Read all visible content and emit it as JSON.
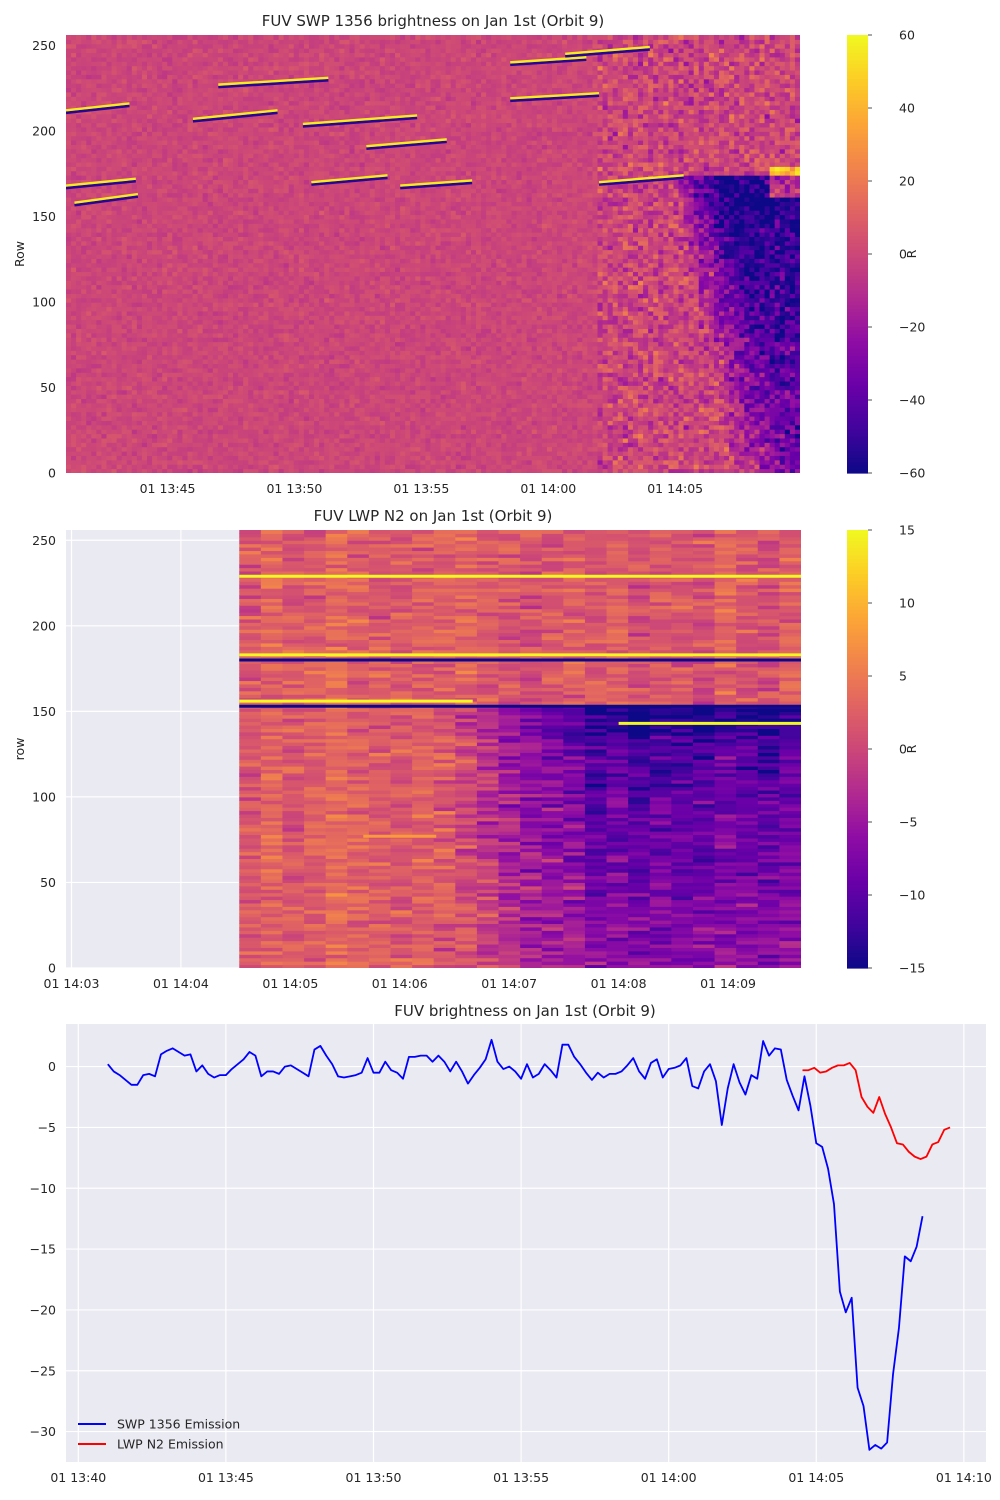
{
  "panels": [
    {
      "title": "FUV SWP 1356 brightness on Jan 1st (Orbit 9)",
      "ylabel": "Row",
      "colorbar_label": "R",
      "colorbar_ticks": [
        "60",
        "40",
        "20",
        "0",
        "−20",
        "−40",
        "−60"
      ],
      "y_ticks": [
        "0",
        "50",
        "100",
        "150",
        "200",
        "250"
      ],
      "x_ticks": [
        "01 13:45",
        "01 13:50",
        "01 13:55",
        "01 14:00",
        "01 14:05"
      ]
    },
    {
      "title": "FUV LWP N2 on Jan 1st (Orbit 9)",
      "ylabel": "row",
      "colorbar_label": "R",
      "colorbar_ticks": [
        "15",
        "10",
        "5",
        "0",
        "−5",
        "−10",
        "−15"
      ],
      "y_ticks": [
        "0",
        "50",
        "100",
        "150",
        "200",
        "250"
      ],
      "x_ticks": [
        "01 14:03",
        "01 14:04",
        "01 14:05",
        "01 14:06",
        "01 14:07",
        "01 14:08",
        "01 14:09"
      ]
    },
    {
      "title": "FUV brightness on Jan 1st (Orbit 9)",
      "y_ticks": [
        "0",
        "−5",
        "−10",
        "−15",
        "−20",
        "−25",
        "−30"
      ],
      "x_ticks": [
        "01 13:40",
        "01 13:45",
        "01 13:50",
        "01 13:55",
        "01 14:00",
        "01 14:05",
        "01 14:10"
      ],
      "legend": [
        "SWP 1356 Emission",
        "LWP N2 Emission"
      ]
    }
  ],
  "colors": {
    "swp_line": "#0000ff",
    "lwp_line": "#ff0000",
    "axes_bg": "#eaeaf2",
    "grid": "#ffffff",
    "cmap": "plasma"
  },
  "chart_data": [
    {
      "type": "heatmap",
      "title": "FUV SWP 1356 brightness on Jan 1st (Orbit 9)",
      "ylabel": "Row",
      "colorbar_label": "R",
      "colormap": "plasma",
      "color_range": [
        -60,
        60
      ],
      "x_range": [
        "13:41:00",
        "14:09:55"
      ],
      "y_range": [
        0,
        256
      ],
      "features": [
        {
          "kind": "background",
          "value": 0
        },
        {
          "kind": "negative-region",
          "time_start": "14:04:40",
          "time_end": "14:09:55",
          "row_start": 0,
          "row_end": 175,
          "peak_value": -60
        },
        {
          "kind": "positive-patch",
          "time_start": "14:08:40",
          "time_end": "14:09:55",
          "row_start": 160,
          "row_end": 178,
          "peak_value": 60
        }
      ],
      "streaks": [
        {
          "t0": "13:41:00",
          "t1": "13:43:30",
          "row0": 212,
          "row1": 216
        },
        {
          "t0": "13:41:00",
          "t1": "13:43:45",
          "row0": 168,
          "row1": 172
        },
        {
          "t0": "13:41:20",
          "t1": "13:43:50",
          "row0": 158,
          "row1": 163
        },
        {
          "t0": "13:46:00",
          "t1": "13:49:20",
          "row0": 207,
          "row1": 212
        },
        {
          "t0": "13:47:00",
          "t1": "13:51:20",
          "row0": 227,
          "row1": 231
        },
        {
          "t0": "13:50:20",
          "t1": "13:54:50",
          "row0": 204,
          "row1": 209
        },
        {
          "t0": "13:52:50",
          "t1": "13:56:00",
          "row0": 191,
          "row1": 195
        },
        {
          "t0": "13:50:40",
          "t1": "13:53:40",
          "row0": 170,
          "row1": 174
        },
        {
          "t0": "13:54:10",
          "t1": "13:57:00",
          "row0": 168,
          "row1": 171
        },
        {
          "t0": "13:58:30",
          "t1": "14:01:30",
          "row0": 240,
          "row1": 243
        },
        {
          "t0": "14:00:40",
          "t1": "14:04:00",
          "row0": 245,
          "row1": 249
        },
        {
          "t0": "13:58:30",
          "t1": "14:02:00",
          "row0": 219,
          "row1": 222
        },
        {
          "t0": "14:02:00",
          "t1": "14:05:20",
          "row0": 170,
          "row1": 174
        }
      ]
    },
    {
      "type": "heatmap",
      "title": "FUV LWP N2 on Jan 1st (Orbit 9)",
      "ylabel": "row",
      "colorbar_label": "R",
      "colormap": "plasma",
      "color_range": [
        -15,
        15
      ],
      "x_range": [
        "14:02:57",
        "14:09:40"
      ],
      "data_start": "14:04:32",
      "y_range": [
        0,
        256
      ],
      "features": [
        {
          "kind": "background",
          "value": 2
        },
        {
          "kind": "negative-region",
          "time_start": "14:06:20",
          "time_end": "14:09:40",
          "row_start": 0,
          "row_end": 155,
          "peak_value": -15
        }
      ],
      "streaks": [
        {
          "row": 229,
          "time_start": "14:04:32",
          "time_end": "14:09:40",
          "value": 15
        },
        {
          "row": 183,
          "time_start": "14:04:32",
          "time_end": "14:09:40",
          "value": 15
        },
        {
          "row": 180,
          "time_start": "14:04:32",
          "time_end": "14:09:40",
          "value": -15
        },
        {
          "row": 156,
          "time_start": "14:04:32",
          "time_end": "14:06:40",
          "value": 15
        },
        {
          "row": 153,
          "time_start": "14:04:32",
          "time_end": "14:09:40",
          "value": -15
        },
        {
          "row": 143,
          "time_start": "14:08:00",
          "time_end": "14:09:40",
          "value": 15
        },
        {
          "row": 77,
          "time_start": "14:05:40",
          "time_end": "14:06:20",
          "value": 8
        }
      ]
    },
    {
      "type": "line",
      "title": "FUV brightness on Jan 1st (Orbit 9)",
      "x_range": [
        "13:39:35",
        "14:10:45"
      ],
      "ylim": [
        -32.5,
        3.5
      ],
      "legend_position": "lower left",
      "series": [
        {
          "name": "SWP 1356 Emission",
          "color": "#0000ff",
          "x_start": "13:41:00",
          "x_step_seconds": 12,
          "values": [
            0.2,
            -0.4,
            -0.7,
            -1.1,
            -1.5,
            -1.5,
            -0.7,
            -0.6,
            -0.8,
            1.0,
            1.3,
            1.5,
            1.2,
            0.9,
            1.0,
            -0.4,
            0.1,
            -0.6,
            -0.9,
            -0.7,
            -0.7,
            -0.2,
            0.2,
            0.6,
            1.2,
            0.9,
            -0.8,
            -0.4,
            -0.4,
            -0.6,
            0.0,
            0.1,
            -0.2,
            -0.5,
            -0.8,
            1.4,
            1.7,
            0.9,
            0.2,
            -0.8,
            -0.9,
            -0.8,
            -0.7,
            -0.5,
            0.7,
            -0.5,
            -0.5,
            0.4,
            -0.3,
            -0.5,
            -1.0,
            0.8,
            0.8,
            0.9,
            0.9,
            0.4,
            0.9,
            0.4,
            -0.4,
            0.4,
            -0.4,
            -1.4,
            -0.7,
            -0.1,
            0.6,
            2.2,
            0.4,
            -0.2,
            0.0,
            -0.4,
            -1.0,
            0.2,
            -0.9,
            -0.6,
            0.2,
            -0.3,
            -0.9,
            1.8,
            1.8,
            0.8,
            0.2,
            -0.5,
            -1.1,
            -0.5,
            -0.9,
            -0.6,
            -0.6,
            -0.4,
            0.1,
            0.7,
            -0.4,
            -1.0,
            0.3,
            0.6,
            -0.9,
            -0.2,
            -0.1,
            0.1,
            0.7,
            -1.6,
            -1.8,
            -0.4,
            0.2,
            -1.2,
            -4.8,
            -1.8,
            0.2,
            -1.3,
            -2.3,
            -0.7,
            -1.0,
            2.1,
            0.9,
            1.5,
            1.4,
            -1.1,
            -2.4,
            -3.6,
            -0.8,
            -3.2,
            -6.3,
            -6.6,
            -8.4,
            -11.3,
            -18.5,
            -20.2,
            -19.0,
            -26.4,
            -27.9,
            -31.5,
            -31.1,
            -31.4,
            -30.9,
            -25.3,
            -21.5,
            -15.6,
            -16.0,
            -14.8,
            -12.3
          ]
        },
        {
          "name": "LWP N2 Emission",
          "color": "#ff0000",
          "x_start": "14:04:32",
          "x_step_seconds": 12,
          "values": [
            -0.3,
            -0.3,
            -0.1,
            -0.5,
            -0.4,
            -0.1,
            0.1,
            0.1,
            0.3,
            -0.3,
            -2.5,
            -3.3,
            -3.8,
            -2.5,
            -3.9,
            -5.0,
            -6.3,
            -6.4,
            -7.0,
            -7.4,
            -7.6,
            -7.4,
            -6.4,
            -6.2,
            -5.2,
            -5.0
          ]
        }
      ]
    }
  ]
}
